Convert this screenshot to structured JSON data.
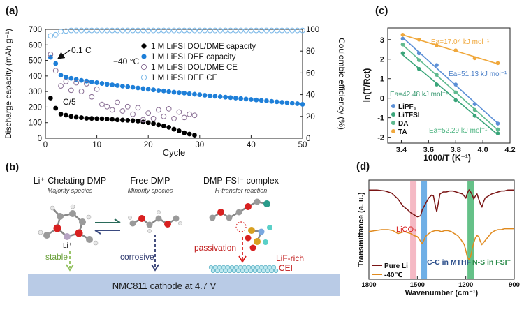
{
  "chart_data": [
    {
      "type": "scatter",
      "panel_label": "(a)",
      "xlabel": "Cycle",
      "ylabel": "Discharge capacity (mAh g⁻¹)",
      "y2label": "Coulombic efficiency (%)",
      "xlim": [
        0,
        50
      ],
      "ylim": [
        0,
        700
      ],
      "y2lim": [
        0,
        100
      ],
      "xticks": [
        "0",
        "10",
        "20",
        "30",
        "40",
        "50"
      ],
      "yticks": [
        "0",
        "100",
        "200",
        "300",
        "400",
        "500",
        "600",
        "700"
      ],
      "y2ticks": [
        "0",
        "20",
        "40",
        "60",
        "80",
        "100"
      ],
      "annotations": {
        "rate1": "0.1 C",
        "temp": "−40 °C",
        "rate2": "C/5"
      },
      "series": [
        {
          "name": "1 M LiFSI DOL/DME capacity",
          "axis": "left",
          "color": "#000000",
          "filled": true,
          "x": [
            1,
            2,
            3,
            4,
            5,
            6,
            7,
            8,
            9,
            10,
            11,
            12,
            13,
            14,
            15,
            16,
            17,
            18,
            19,
            20,
            21,
            22,
            23,
            24,
            25,
            26,
            27,
            28,
            29
          ],
          "y": [
            258,
            193,
            155,
            148,
            140,
            135,
            132,
            128,
            127,
            126,
            125,
            123,
            121,
            118,
            117,
            115,
            113,
            110,
            104,
            100,
            94,
            86,
            79,
            70,
            58,
            47,
            35,
            27,
            20
          ]
        },
        {
          "name": "1 M LiFSI DEE capacity",
          "axis": "left",
          "color": "#1e7fd8",
          "filled": true,
          "x": [
            1,
            2,
            3,
            4,
            5,
            6,
            7,
            8,
            9,
            10,
            11,
            12,
            13,
            14,
            15,
            16,
            17,
            18,
            19,
            20,
            21,
            22,
            23,
            24,
            25,
            26,
            27,
            28,
            29,
            30,
            31,
            32,
            33,
            34,
            35,
            36,
            37,
            38,
            39,
            40,
            41,
            42,
            43,
            44,
            45,
            46,
            47,
            48,
            49,
            50
          ],
          "y": [
            520,
            480,
            405,
            393,
            385,
            378,
            372,
            367,
            362,
            357,
            352,
            347,
            343,
            339,
            335,
            331,
            327,
            323,
            319,
            315,
            311,
            307,
            304,
            300,
            296,
            293,
            290,
            286,
            283,
            280,
            276,
            273,
            270,
            267,
            264,
            261,
            258,
            255,
            252,
            249,
            246,
            243,
            240,
            237,
            234,
            231,
            228,
            225,
            222,
            218
          ]
        },
        {
          "name": "1 M LiFSI DOL/DME CE",
          "axis": "right",
          "color": "#8a6f95",
          "filled": false,
          "x": [
            1,
            2,
            3,
            4,
            5,
            6,
            7,
            8,
            9,
            10,
            11,
            12,
            13,
            14,
            15,
            16,
            17,
            18,
            19,
            20,
            21,
            22,
            23,
            24,
            25,
            26,
            27,
            28,
            29
          ],
          "y": [
            77,
            62,
            48,
            52,
            44,
            51,
            43,
            50,
            38,
            45,
            31,
            29,
            26,
            33,
            25,
            29,
            22,
            28,
            17,
            23,
            18,
            26,
            20,
            27,
            18,
            24,
            19,
            22,
            21
          ]
        },
        {
          "name": "1 M LiFSI DEE CE",
          "axis": "right",
          "color": "#7ab8e8",
          "filled": false,
          "x": [
            1,
            2,
            3,
            4,
            5,
            6,
            7,
            8,
            9,
            10,
            11,
            12,
            13,
            14,
            15,
            16,
            17,
            18,
            19,
            20,
            21,
            22,
            23,
            24,
            25,
            26,
            27,
            28,
            29,
            30,
            31,
            32,
            33,
            34,
            35,
            36,
            37,
            38,
            39,
            40,
            41,
            42,
            43,
            44,
            45,
            46,
            47,
            48,
            49,
            50
          ],
          "y": [
            94,
            95,
            98,
            98.5,
            99,
            99,
            99,
            99,
            99,
            99,
            99,
            99,
            99,
            99,
            99,
            99,
            99,
            99,
            99,
            99,
            99,
            99,
            99,
            99,
            99,
            99,
            99,
            99,
            99,
            99,
            99,
            99,
            99,
            99,
            99,
            99,
            99,
            99,
            99,
            99,
            99,
            99,
            99,
            99,
            99,
            99,
            99,
            99,
            99,
            99
          ]
        }
      ]
    },
    {
      "type": "scatter",
      "panel_label": "(c)",
      "xlabel": "1000/T (K⁻¹)",
      "ylabel": "ln(T/Rct)",
      "xlim": [
        3.3,
        4.2
      ],
      "ylim": [
        -2.3,
        3.6
      ],
      "xticks": [
        "3.4",
        "3.6",
        "3.8",
        "4.0",
        "4.2"
      ],
      "yticks": [
        "-2",
        "-1",
        "0",
        "1",
        "2",
        "3"
      ],
      "legend": [
        "LiPF₆",
        "LiTFSI",
        "DA",
        "TA"
      ],
      "annotations": [
        "Ea=17.04 kJ mol⁻¹",
        "Ea=51.13 kJ mol⁻¹",
        "Ea=42.48 kJ mol⁻¹",
        "Ea=52.29 kJ mol⁻¹"
      ],
      "series": [
        {
          "name": "LiPF₆",
          "color": "#5b8fd6",
          "x": [
            3.41,
            3.53,
            3.66,
            3.8,
            3.94,
            4.11
          ],
          "y": [
            3.05,
            2.3,
            1.7,
            0.7,
            -0.3,
            -1.3
          ]
        },
        {
          "name": "LiTFSI",
          "color": "#3aa57a",
          "x": [
            3.41,
            3.53,
            3.66,
            3.8,
            3.94,
            4.11
          ],
          "y": [
            2.3,
            1.5,
            0.7,
            -0.1,
            -0.9,
            -1.8
          ]
        },
        {
          "name": "DA",
          "color": "#5fba8f",
          "x": [
            3.41,
            3.53,
            3.66,
            3.8,
            3.94,
            4.11
          ],
          "y": [
            2.75,
            1.95,
            1.2,
            0.3,
            -0.6,
            -1.6
          ]
        },
        {
          "name": "TA",
          "color": "#f0a83c",
          "x": [
            3.41,
            3.53,
            3.66,
            3.8,
            3.94,
            4.11
          ],
          "y": [
            3.25,
            3.0,
            2.7,
            2.45,
            2.05,
            1.8
          ]
        }
      ]
    },
    {
      "type": "line",
      "panel_label": "(d)",
      "xlabel": "Wavenumber (cm⁻¹)",
      "ylabel": "Transmittance (a. u.)",
      "xlim": [
        1800,
        900
      ],
      "xticks": [
        "1800",
        "1500",
        "1200",
        "900"
      ],
      "legend": [
        "Pure Li",
        "-40℃"
      ],
      "bands": [
        {
          "label": "LiCO₃",
          "center": 1525,
          "color": "#f2a7b5"
        },
        {
          "label": "C-C in MTHF",
          "center": 1460,
          "color": "#4b9be0"
        },
        {
          "label": "N-S in FSI⁻",
          "center": 1170,
          "color": "#3fb26a"
        }
      ],
      "series": [
        {
          "name": "Pure Li",
          "color": "#7a1515",
          "x": [
            1800,
            1750,
            1700,
            1660,
            1620,
            1590,
            1560,
            1540,
            1520,
            1500,
            1480,
            1470,
            1450,
            1430,
            1410,
            1400,
            1390,
            1380,
            1370,
            1360,
            1340,
            1320,
            1300,
            1280,
            1260,
            1240,
            1220,
            1200,
            1190,
            1180,
            1170,
            1160,
            1150,
            1140,
            1130,
            1110,
            1100,
            1090,
            1080,
            1060,
            1040,
            1020,
            1000,
            980,
            960,
            940,
            920,
            900
          ],
          "y": [
            9.0,
            9.0,
            8.9,
            8.7,
            8.1,
            7.4,
            7.0,
            6.7,
            6.5,
            6.3,
            6.4,
            7.0,
            7.6,
            8.2,
            8.5,
            8.4,
            7.5,
            6.8,
            7.7,
            8.6,
            8.8,
            8.8,
            8.9,
            8.9,
            8.8,
            8.7,
            8.6,
            8.2,
            8.7,
            9.0,
            8.8,
            8.5,
            8.1,
            8.4,
            8.6,
            7.6,
            7.3,
            7.8,
            8.2,
            8.4,
            8.6,
            8.7,
            8.8,
            8.9,
            8.9,
            9.0,
            9.0,
            9.0
          ]
        },
        {
          "name": "-40℃",
          "color": "#e08a1e",
          "x": [
            1800,
            1760,
            1720,
            1680,
            1650,
            1620,
            1600,
            1580,
            1560,
            1540,
            1520,
            1500,
            1490,
            1480,
            1470,
            1460,
            1450,
            1430,
            1410,
            1390,
            1370,
            1350,
            1330,
            1310,
            1290,
            1270,
            1250,
            1230,
            1210,
            1200,
            1190,
            1180,
            1170,
            1160,
            1150,
            1140,
            1130,
            1120,
            1110,
            1100,
            1080,
            1060,
            1040,
            1020,
            1000,
            980,
            960,
            940,
            920,
            900
          ],
          "y": [
            4.8,
            4.9,
            5.0,
            5.0,
            4.9,
            4.6,
            4.7,
            4.8,
            4.7,
            4.6,
            4.4,
            4.3,
            4.1,
            3.8,
            3.6,
            3.9,
            4.3,
            4.6,
            4.8,
            4.9,
            4.9,
            4.8,
            4.9,
            4.9,
            4.8,
            4.6,
            4.4,
            4.0,
            3.5,
            2.9,
            2.2,
            2.0,
            2.3,
            3.1,
            3.7,
            4.2,
            4.4,
            4.3,
            3.8,
            3.5,
            3.9,
            4.3,
            4.7,
            4.9,
            5.0,
            5.0,
            5.1,
            5.1,
            5.1,
            5.1
          ]
        }
      ]
    }
  ],
  "panel_b": {
    "label": "(b)",
    "species": [
      {
        "title": "Li⁺-Chelating DMP",
        "subtitle": "Majority species",
        "li_label": "Li⁺",
        "arrow_label": "stable"
      },
      {
        "title": "Free DMP",
        "subtitle": "Minority species",
        "arrow_label": "corrosive"
      },
      {
        "title": "DMP-FSI⁻ complex",
        "subtitle": "H-transfer reaction",
        "arrow_label": "passivation",
        "cei_label_1": "LiF-rich",
        "cei_label_2": "CEI"
      }
    ],
    "cathode_label": "NMC811 cathode at 4.7 V"
  }
}
